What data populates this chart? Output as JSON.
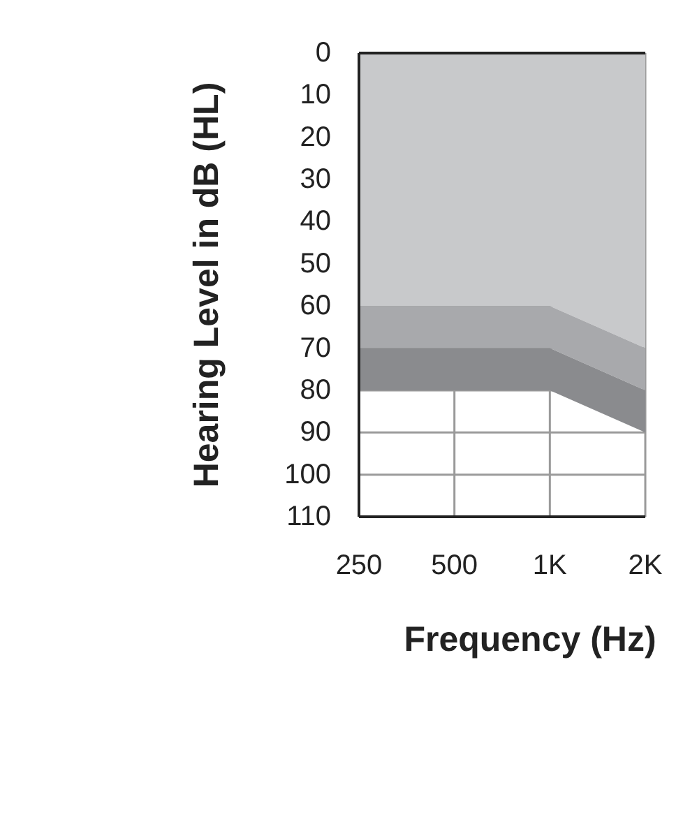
{
  "chart_data": {
    "type": "area",
    "xlabel": "Frequency (Hz)",
    "ylabel": "Hearing Level in dB (HL)",
    "categories": [
      "250",
      "500",
      "1K",
      "2K"
    ],
    "stacked": true,
    "series": [
      {
        "color": "#c8c9cb",
        "values": [
          60,
          60,
          60,
          70
        ]
      },
      {
        "color": "#a8a9ac",
        "values": [
          10,
          10,
          10,
          10
        ]
      },
      {
        "color": "#8a8b8e",
        "values": [
          10,
          10,
          10,
          10
        ]
      }
    ],
    "ylim": [
      110,
      0
    ],
    "yticks": [
      0,
      10,
      20,
      30,
      40,
      50,
      60,
      70,
      80,
      90,
      100,
      110
    ],
    "grid": true
  }
}
